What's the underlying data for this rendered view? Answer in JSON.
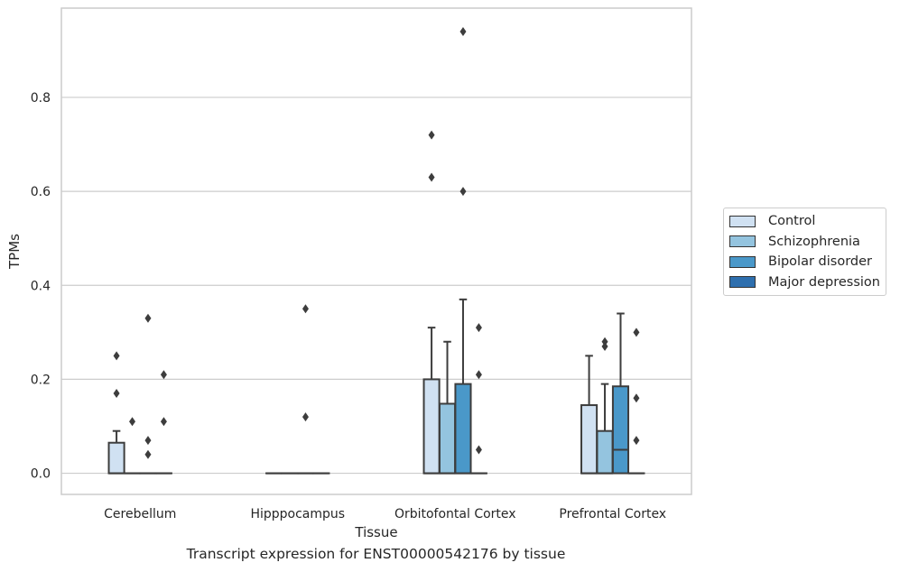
{
  "chart_data": {
    "type": "box",
    "xlabel": "Tissue",
    "ylabel": "TPMs",
    "caption": "Transcript expression for ENST00000542176 by tissue",
    "ylim": [
      -0.045,
      0.99
    ],
    "yticks": [
      0.0,
      0.2,
      0.4,
      0.6,
      0.8
    ],
    "ytick_labels": [
      "0.0",
      "0.2",
      "0.4",
      "0.6",
      "0.8"
    ],
    "grid": "horizontal",
    "legend_position": "right",
    "categories": [
      "Cerebellum",
      "Hipppocampus",
      "Orbitofontal Cortex",
      "Prefrontal Cortex"
    ],
    "series": [
      {
        "name": "Control",
        "color": "#d0e1f2",
        "boxes": [
          {
            "q1": 0,
            "median": 0,
            "q3": 0.065,
            "whisker_low": 0,
            "whisker_high": 0.09,
            "outliers": [
              0.17,
              0.25
            ]
          },
          {
            "q1": 0,
            "median": 0,
            "q3": 0,
            "whisker_low": 0,
            "whisker_high": 0,
            "outliers": []
          },
          {
            "q1": 0,
            "median": 0,
            "q3": 0.2,
            "whisker_low": 0,
            "whisker_high": 0.31,
            "outliers": [
              0.63,
              0.72
            ]
          },
          {
            "q1": 0,
            "median": 0,
            "q3": 0.145,
            "whisker_low": 0,
            "whisker_high": 0.25,
            "outliers": []
          }
        ]
      },
      {
        "name": "Schizophrenia",
        "color": "#94c4df",
        "boxes": [
          {
            "q1": 0,
            "median": 0,
            "q3": 0,
            "whisker_low": 0,
            "whisker_high": 0,
            "outliers": [
              0.11
            ]
          },
          {
            "q1": 0,
            "median": 0,
            "q3": 0,
            "whisker_low": 0,
            "whisker_high": 0,
            "outliers": []
          },
          {
            "q1": 0,
            "median": 0,
            "q3": 0.148,
            "whisker_low": 0,
            "whisker_high": 0.28,
            "outliers": []
          },
          {
            "q1": 0,
            "median": 0,
            "q3": 0.09,
            "whisker_low": 0,
            "whisker_high": 0.19,
            "outliers": [
              0.27,
              0.28
            ]
          }
        ]
      },
      {
        "name": "Bipolar disorder",
        "color": "#4a98c9",
        "boxes": [
          {
            "q1": 0,
            "median": 0,
            "q3": 0,
            "whisker_low": 0,
            "whisker_high": 0,
            "outliers": [
              0.04,
              0.07,
              0.33
            ]
          },
          {
            "q1": 0,
            "median": 0,
            "q3": 0,
            "whisker_low": 0,
            "whisker_high": 0,
            "outliers": [
              0.12,
              0.35
            ]
          },
          {
            "q1": 0,
            "median": 0,
            "q3": 0.19,
            "whisker_low": 0,
            "whisker_high": 0.37,
            "outliers": [
              0.6,
              0.94
            ]
          },
          {
            "q1": 0,
            "median": 0.05,
            "q3": 0.185,
            "whisker_low": 0,
            "whisker_high": 0.34,
            "outliers": []
          }
        ]
      },
      {
        "name": "Major depression",
        "color": "#2e6fae",
        "boxes": [
          {
            "q1": 0,
            "median": 0,
            "q3": 0,
            "whisker_low": 0,
            "whisker_high": 0,
            "outliers": [
              0.11,
              0.21
            ]
          },
          {
            "q1": 0,
            "median": 0,
            "q3": 0,
            "whisker_low": 0,
            "whisker_high": 0,
            "outliers": []
          },
          {
            "q1": 0,
            "median": 0,
            "q3": 0,
            "whisker_low": 0,
            "whisker_high": 0,
            "outliers": [
              0.05,
              0.21,
              0.31
            ]
          },
          {
            "q1": 0,
            "median": 0,
            "q3": 0,
            "whisker_low": 0,
            "whisker_high": 0,
            "outliers": [
              0.07,
              0.16,
              0.3
            ]
          }
        ]
      }
    ]
  }
}
